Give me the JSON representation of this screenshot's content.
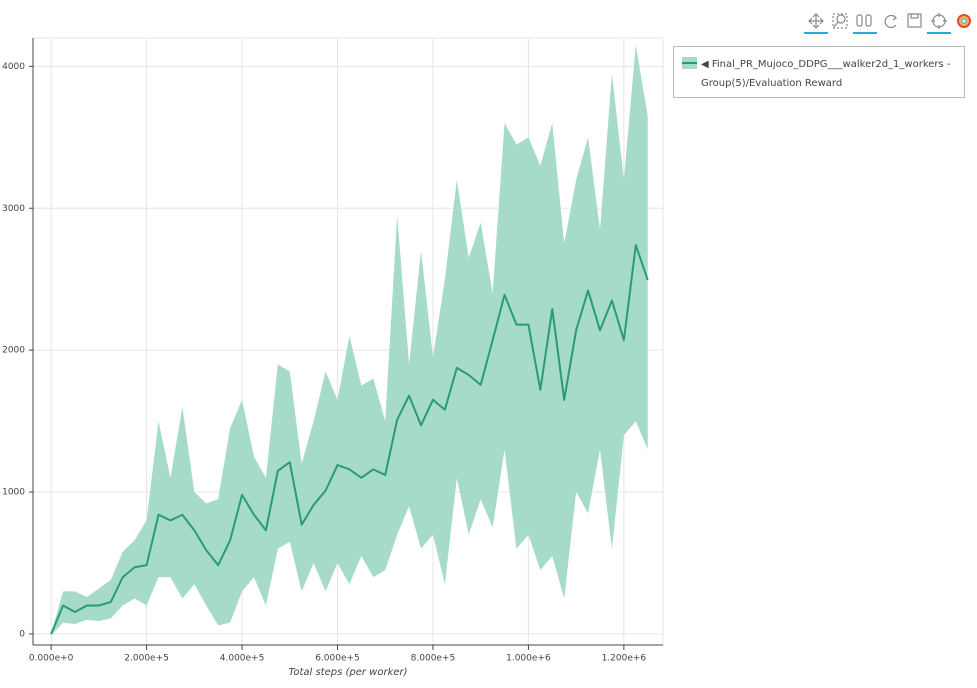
{
  "chart_data": {
    "type": "line",
    "xlabel": "Total steps (per worker)",
    "x": [
      0,
      25000,
      50000,
      75000,
      100000,
      125000,
      150000,
      175000,
      200000,
      225000,
      250000,
      275000,
      300000,
      325000,
      350000,
      375000,
      400000,
      425000,
      450000,
      475000,
      500000,
      525000,
      550000,
      575000,
      600000,
      625000,
      650000,
      675000,
      700000,
      725000,
      750000,
      775000,
      800000,
      825000,
      850000,
      875000,
      900000,
      925000,
      950000,
      975000,
      1000000,
      1025000,
      1050000,
      1075000,
      1100000,
      1125000,
      1150000,
      1175000,
      1200000,
      1225000,
      1250000
    ],
    "series": [
      {
        "name": "◀ Final_PR_Mujoco_DDPG___walker2d_1_workers - Group(5)/Evaluation Reward",
        "color": "#2a9d6f",
        "band_color": "#a6dbc9",
        "values": [
          0,
          200,
          155,
          200,
          200,
          225,
          400,
          470,
          485,
          840,
          800,
          840,
          730,
          590,
          485,
          660,
          980,
          840,
          730,
          1150,
          1210,
          770,
          910,
          1010,
          1190,
          1160,
          1100,
          1160,
          1120,
          1510,
          1680,
          1470,
          1650,
          1580,
          1875,
          1825,
          1755,
          2070,
          2390,
          2180,
          2180,
          1720,
          2290,
          1650,
          2140,
          2420,
          2140,
          2350,
          2070,
          2740,
          2495
        ],
        "upper": [
          0,
          300,
          300,
          260,
          320,
          380,
          580,
          660,
          800,
          1500,
          1100,
          1600,
          1000,
          920,
          950,
          1450,
          1650,
          1250,
          1100,
          1900,
          1850,
          1200,
          1500,
          1850,
          1650,
          2100,
          1750,
          1800,
          1500,
          2950,
          1900,
          2700,
          1950,
          2500,
          3200,
          2650,
          2900,
          2400,
          3600,
          3450,
          3500,
          3300,
          3600,
          2750,
          3200,
          3500,
          2850,
          3950,
          3200,
          4150,
          3650
        ],
        "lower": [
          -10,
          80,
          70,
          100,
          90,
          110,
          200,
          250,
          200,
          400,
          400,
          250,
          350,
          200,
          60,
          80,
          300,
          400,
          200,
          600,
          650,
          300,
          500,
          300,
          500,
          350,
          550,
          400,
          450,
          700,
          900,
          600,
          700,
          350,
          1100,
          700,
          950,
          750,
          1300,
          600,
          700,
          450,
          550,
          250,
          1000,
          850,
          1300,
          600,
          1400,
          1500,
          1300
        ]
      }
    ],
    "xlim": [
      -38000,
      1282000
    ],
    "ylim": [
      -78,
      4200
    ],
    "xticks": [
      {
        "value": 0,
        "label": "0.000e+0"
      },
      {
        "value": 200000,
        "label": "2.000e+5"
      },
      {
        "value": 400000,
        "label": "4.000e+5"
      },
      {
        "value": 600000,
        "label": "6.000e+5"
      },
      {
        "value": 800000,
        "label": "8.000e+5"
      },
      {
        "value": 1000000,
        "label": "1.000e+6"
      },
      {
        "value": 1200000,
        "label": "1.200e+6"
      }
    ],
    "yticks": [
      0,
      1000,
      2000,
      3000,
      4000
    ],
    "grid": true
  }
}
